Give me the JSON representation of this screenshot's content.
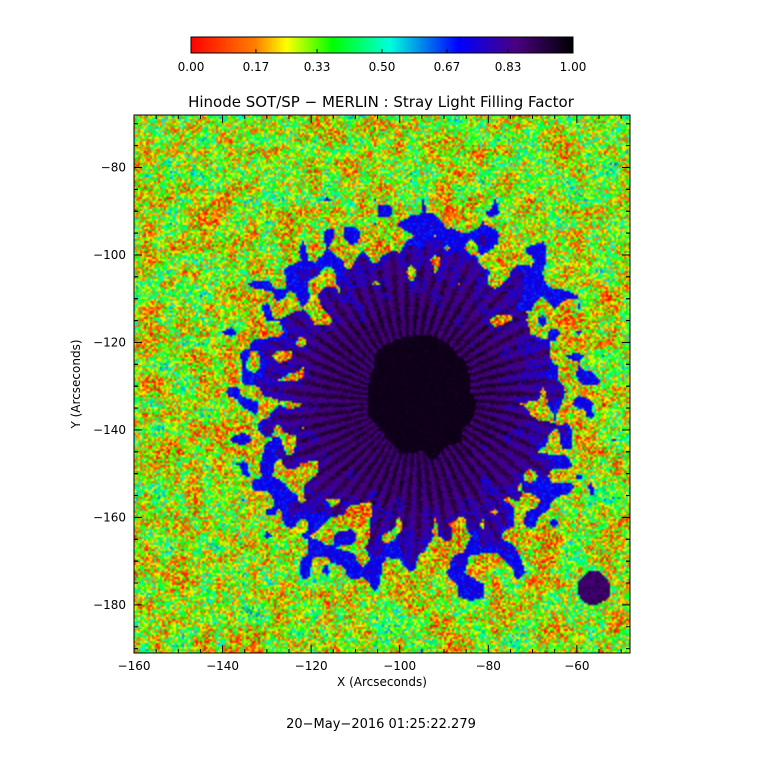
{
  "colorbar": {
    "ticks": [
      "0.00",
      "0.17",
      "0.33",
      "0.50",
      "0.67",
      "0.83",
      "1.00"
    ],
    "colormap": [
      "#ff0000",
      "#ff7f00",
      "#ffff00",
      "#00ff00",
      "#00ffff",
      "#0000ff",
      "#000000"
    ]
  },
  "chart_data": {
    "type": "heatmap",
    "title": "Hinode SOT/SP − MERLIN : Stray Light Filling Factor",
    "xlabel": "X (Arcseconds)",
    "ylabel": "Y (Arcseconds)",
    "xlim": [
      -160,
      -48
    ],
    "ylim": [
      -191,
      -68
    ],
    "x_ticks": [
      "−160",
      "−140",
      "−120",
      "−100",
      "−80",
      "−60"
    ],
    "y_ticks": [
      "−80",
      "−100",
      "−120",
      "−140",
      "−160",
      "−180"
    ],
    "value_range": [
      0,
      1
    ],
    "features": {
      "umbra": {
        "center": [
          -95,
          -132
        ],
        "radius_x": 12,
        "radius_y": 14,
        "value": 0.98
      },
      "penumbra": {
        "center": [
          -97,
          -133
        ],
        "radius_x": 31,
        "radius_y": 33,
        "value": 0.9
      },
      "pore": {
        "center": [
          -56,
          -176
        ],
        "radius": 3,
        "value": 0.88
      },
      "quiet_sun_mean": 0.3
    }
  },
  "footer": {
    "timestamp": "20−May−2016 01:25:22.279"
  }
}
